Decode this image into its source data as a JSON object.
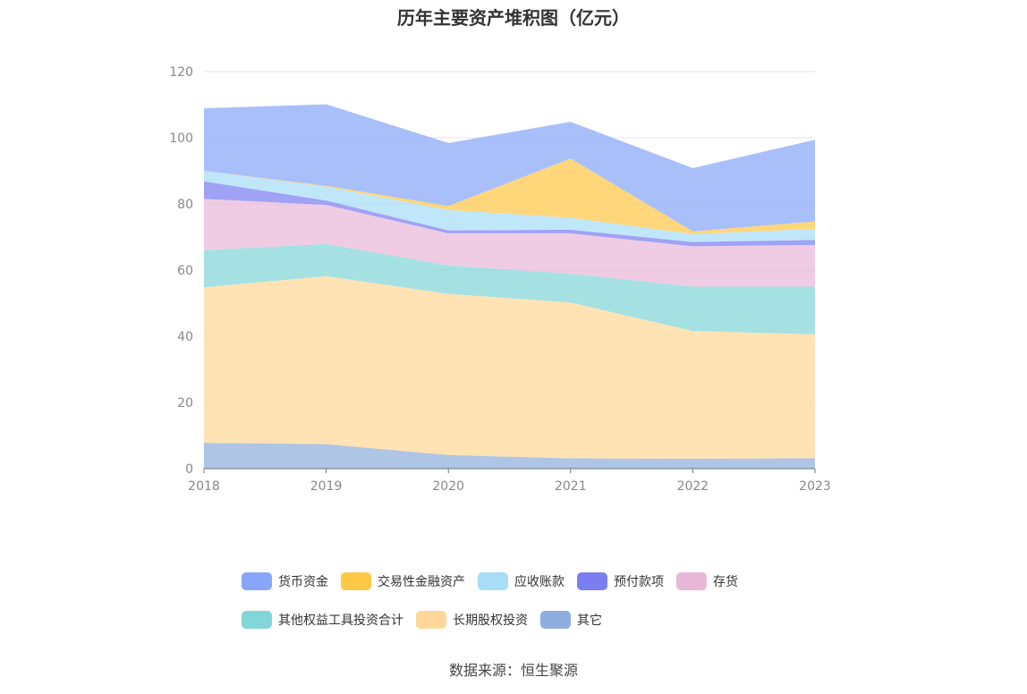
{
  "chart_data": {
    "type": "area",
    "stacked": true,
    "title": "历年主要资产堆积图（亿元）",
    "source": "数据来源：恒生聚源",
    "xlabel": "",
    "ylabel": "",
    "ylim": [
      0,
      120
    ],
    "yticks": [
      0,
      20,
      40,
      60,
      80,
      100,
      120
    ],
    "categories": [
      "2018",
      "2019",
      "2020",
      "2021",
      "2022",
      "2023"
    ],
    "series": [
      {
        "name": "其它",
        "color": "#8FAEDD",
        "values": [
          7.8,
          7.4,
          4.1,
          3.1,
          3.0,
          3.1
        ]
      },
      {
        "name": "长期股权投资",
        "color": "#FFD899",
        "values": [
          47.0,
          50.8,
          48.7,
          47.1,
          38.6,
          37.5
        ]
      },
      {
        "name": "其他权益工具投资合计",
        "color": "#82D6D8",
        "values": [
          11.2,
          9.7,
          8.6,
          8.7,
          13.4,
          14.4
        ]
      },
      {
        "name": "存货",
        "color": "#E9B8D9",
        "values": [
          15.5,
          11.8,
          9.7,
          12.2,
          12.2,
          12.6
        ]
      },
      {
        "name": "预付款项",
        "color": "#7B7EF1",
        "values": [
          5.3,
          1.3,
          0.9,
          1.1,
          1.3,
          1.5
        ]
      },
      {
        "name": "应收账款",
        "color": "#A7DDF7",
        "values": [
          3.2,
          4.2,
          6.2,
          3.6,
          2.4,
          3.4
        ]
      },
      {
        "name": "交易性金融资产",
        "color": "#FFC846",
        "values": [
          0.0,
          0.3,
          1.2,
          17.9,
          0.8,
          2.2
        ]
      },
      {
        "name": "货币资金",
        "color": "#88A6F8",
        "values": [
          18.9,
          24.6,
          19.0,
          11.1,
          19.1,
          24.7
        ]
      }
    ],
    "legend": {
      "position": "bottom",
      "order": [
        "货币资金",
        "交易性金融资产",
        "应收账款",
        "预付款项",
        "存货",
        "其他权益工具投资合计",
        "长期股权投资",
        "其它"
      ]
    },
    "grid": true
  }
}
